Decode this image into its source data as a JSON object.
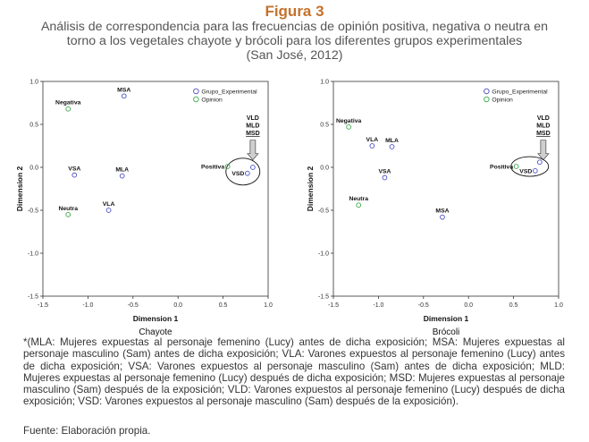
{
  "figure_label": "Figura 3",
  "caption_lines": [
    "Análisis de correspondencia para las frecuencias de opinión positiva, negativa o neutra en",
    "torno a los vegetales chayote y brócoli para los diferentes grupos experimentales",
    "(San José, 2012)"
  ],
  "footnote": "*(MLA: Mujeres expuestas al personaje femenino (Lucy) antes de dicha exposición; MSA: Mujeres expuestas al personaje masculino (Sam) antes de dicha exposición; VLA: Varones expuestos al personaje femenino (Lucy) antes de dicha exposición; VSA: Varones expuestos al personaje masculino (Sam) antes de dicha exposición; MLD: Mujeres expuestas al personaje femenino (Lucy) después de dicha exposición; MSD: Mujeres expuestas al personaje masculino (Sam) después de la exposición; VLD: Varones expuestos al personaje femenino (Lucy) después de dicha exposición; VSD: Varones expuestos al personaje masculino (Sam) después de la exposición).",
  "source": "Fuente: Elaboración propia.",
  "colors": {
    "title": "#c4722b",
    "group_marker": "#4a4ec2",
    "opinion_marker": "#3aa84a"
  },
  "chart_data": [
    {
      "type": "scatter",
      "subtitle": "Chayote",
      "xlabel": "Dimension 1",
      "ylabel": "Dimension 2",
      "xlim": [
        -1.5,
        1.0
      ],
      "ylim": [
        -1.5,
        1.0
      ],
      "xticks": [
        "-1.5",
        "-1.0",
        "-0.5",
        "0.0",
        "0.5",
        "1.0"
      ],
      "yticks": [
        "1.0",
        "0.5",
        "0.0",
        "-0.5",
        "-1.0",
        "-1.5"
      ],
      "legend": [
        "Grupo_Experimental",
        "Opinion"
      ],
      "legend_position": "top-right",
      "points": [
        {
          "label": "MSA",
          "series": "Grupo_Experimental",
          "x": -0.6,
          "y": 0.83
        },
        {
          "label": "VSA",
          "series": "Grupo_Experimental",
          "x": -1.15,
          "y": -0.09
        },
        {
          "label": "MLA",
          "series": "Grupo_Experimental",
          "x": -0.62,
          "y": -0.1
        },
        {
          "label": "VLA",
          "series": "Grupo_Experimental",
          "x": -0.77,
          "y": -0.5
        },
        {
          "label": "VSD",
          "series": "Grupo_Experimental",
          "x": 0.77,
          "y": -0.07
        },
        {
          "label": "",
          "series": "Grupo_Experimental",
          "x": 0.83,
          "y": 0.0
        },
        {
          "label": "Negativa",
          "series": "Opinion",
          "x": -1.22,
          "y": 0.68
        },
        {
          "label": "Neutra",
          "series": "Opinion",
          "x": -1.22,
          "y": -0.55
        },
        {
          "label": "Positiva",
          "series": "Opinion",
          "x": 0.55,
          "y": 0.01
        }
      ],
      "annotation": [
        "VLD",
        "MLD",
        "MSD"
      ]
    },
    {
      "type": "scatter",
      "subtitle": "Brócoli",
      "xlabel": "Dimension 1",
      "ylabel": "Dimension 2",
      "xlim": [
        -1.5,
        1.0
      ],
      "ylim": [
        -1.5,
        1.0
      ],
      "xticks": [
        "-1.5",
        "-1.0",
        "-0.5",
        "0.0",
        "0.5",
        "1.0"
      ],
      "yticks": [
        "1.0",
        "0.5",
        "0.0",
        "-0.5",
        "-1.0",
        "-1.5"
      ],
      "legend": [
        "Grupo_Experimental",
        "Opinion"
      ],
      "legend_position": "top-right",
      "points": [
        {
          "label": "VLA",
          "series": "Grupo_Experimental",
          "x": -1.07,
          "y": 0.25
        },
        {
          "label": "MLA",
          "series": "Grupo_Experimental",
          "x": -0.85,
          "y": 0.24
        },
        {
          "label": "VSA",
          "series": "Grupo_Experimental",
          "x": -0.93,
          "y": -0.12
        },
        {
          "label": "MSA",
          "series": "Grupo_Experimental",
          "x": -0.29,
          "y": -0.58
        },
        {
          "label": "VSD",
          "series": "Grupo_Experimental",
          "x": 0.74,
          "y": -0.04
        },
        {
          "label": "",
          "series": "Grupo_Experimental",
          "x": 0.79,
          "y": 0.06
        },
        {
          "label": "Negativa",
          "series": "Opinion",
          "x": -1.33,
          "y": 0.47
        },
        {
          "label": "Neutra",
          "series": "Opinion",
          "x": -1.22,
          "y": -0.44
        },
        {
          "label": "Positiva",
          "series": "Opinion",
          "x": 0.53,
          "y": 0.01
        }
      ],
      "annotation": [
        "VLD",
        "MLD",
        "MSD"
      ]
    }
  ]
}
